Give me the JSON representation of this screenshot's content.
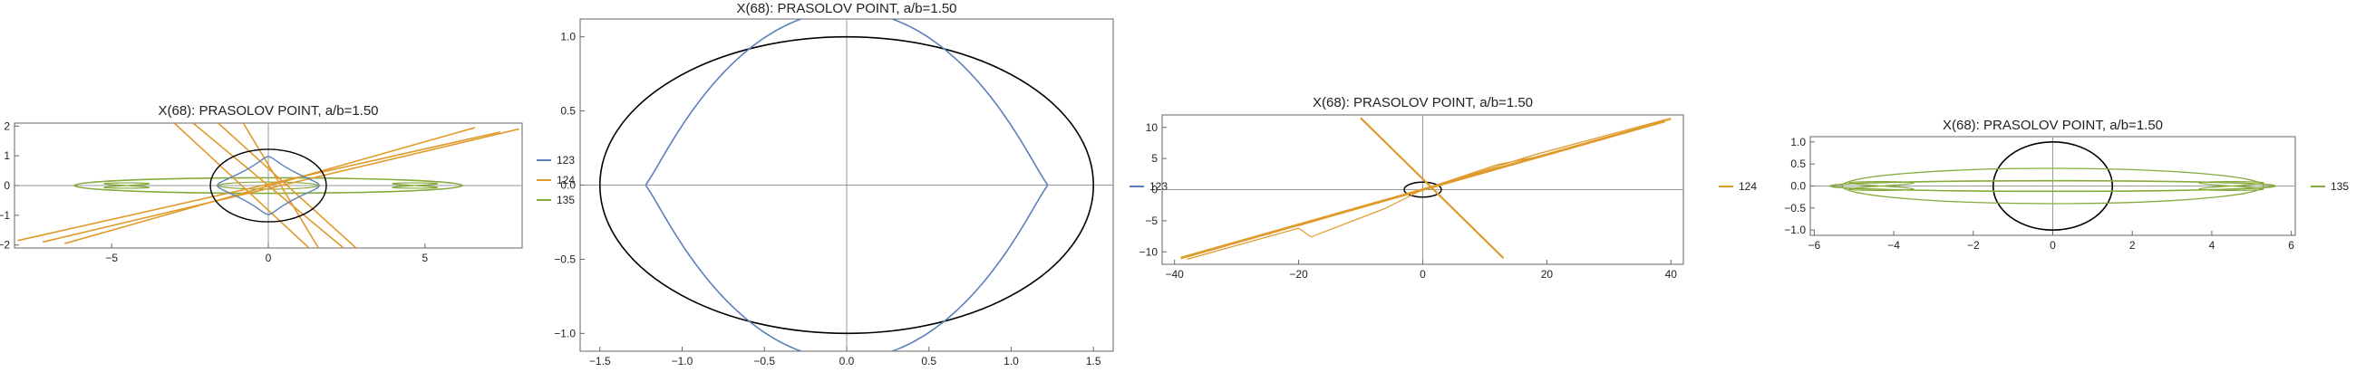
{
  "colors": {
    "c123": "#5b80b8",
    "c124": "#e09a2a",
    "c135": "#86ab3c",
    "ellipse": "#000000",
    "axis": "#888888"
  },
  "chart_data": [
    {
      "type": "line",
      "title": "X(68): PRASOLOV POINT, a/b=1.50",
      "xlim": [
        -8.1,
        8.1
      ],
      "ylim": [
        -2.1,
        2.1
      ],
      "xticks": [
        -5,
        0,
        5
      ],
      "yticks": [
        -2,
        -1,
        0,
        1,
        2
      ],
      "legend_position": "right",
      "series": [
        {
          "name": "123",
          "color": "#5b80b8"
        },
        {
          "name": "124",
          "color": "#e09a2a"
        },
        {
          "name": "135",
          "color": "#86ab3c"
        }
      ]
    },
    {
      "type": "line",
      "title": "X(68): PRASOLOV POINT, a/b=1.50",
      "xlim": [
        -1.62,
        1.62
      ],
      "ylim": [
        -1.12,
        1.12
      ],
      "xticks": [
        -1.5,
        -1.0,
        -0.5,
        0.0,
        0.5,
        1.0,
        1.5
      ],
      "yticks": [
        -1.0,
        -0.5,
        0.0,
        0.5,
        1.0
      ],
      "legend_position": "right",
      "series": [
        {
          "name": "123",
          "color": "#5b80b8"
        }
      ]
    },
    {
      "type": "line",
      "title": "X(68): PRASOLOV POINT, a/b=1.50",
      "xlim": [
        -42,
        42
      ],
      "ylim": [
        -12,
        12
      ],
      "xticks": [
        -40,
        -20,
        0,
        20,
        40
      ],
      "yticks": [
        -10,
        -5,
        0,
        5,
        10
      ],
      "legend_position": "right",
      "series": [
        {
          "name": "124",
          "color": "#e09a2a"
        }
      ]
    },
    {
      "type": "line",
      "title": "X(68): PRASOLOV POINT, a/b=1.50",
      "xlim": [
        -6.1,
        6.1
      ],
      "ylim": [
        -1.12,
        1.12
      ],
      "xticks": [
        -6,
        -4,
        -2,
        0,
        2,
        4,
        6
      ],
      "yticks": [
        -1.0,
        -0.5,
        0.0,
        0.5,
        1.0
      ],
      "legend_position": "right",
      "series": [
        {
          "name": "135",
          "color": "#86ab3c"
        }
      ]
    }
  ]
}
